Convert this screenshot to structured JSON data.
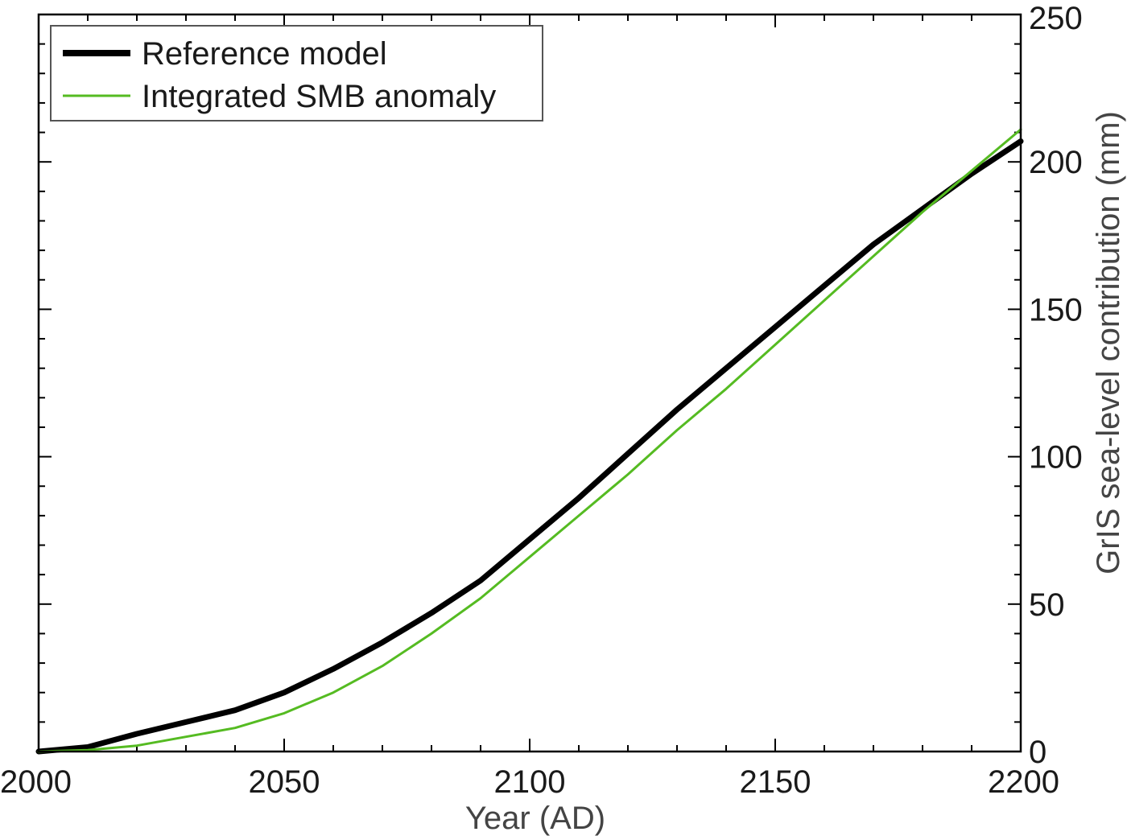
{
  "chart_data": {
    "type": "line",
    "title": "",
    "xlabel": "Year (AD)",
    "ylabel": "GrIS sea-level contribution (mm)",
    "xlim": [
      2000,
      2200
    ],
    "ylim": [
      0,
      250
    ],
    "x_ticks": [
      2000,
      2050,
      2100,
      2150,
      2200
    ],
    "x_tick_labels": [
      "2000",
      "2050",
      "2100",
      "2150",
      "2200"
    ],
    "y_ticks": [
      0,
      50,
      100,
      150,
      200,
      250
    ],
    "y_tick_labels": [
      "0",
      "50",
      "100",
      "150",
      "200",
      "250"
    ],
    "y_axis_side": "right",
    "grid": false,
    "legend_position": "top-left",
    "series": [
      {
        "name": "Reference model",
        "color": "#000000",
        "x": [
          2000,
          2010,
          2020,
          2030,
          2040,
          2050,
          2060,
          2070,
          2080,
          2090,
          2100,
          2110,
          2120,
          2130,
          2140,
          2150,
          2160,
          2170,
          2180,
          2190,
          2200
        ],
        "y": [
          0,
          1.5,
          6,
          10,
          14,
          20,
          28,
          37,
          47,
          58,
          72,
          86,
          101,
          116,
          130,
          144,
          158,
          172,
          184,
          196,
          207
        ]
      },
      {
        "name": "Integrated SMB anomaly",
        "color": "#55bb22",
        "x": [
          2000,
          2010,
          2020,
          2030,
          2040,
          2050,
          2060,
          2070,
          2080,
          2090,
          2100,
          2110,
          2120,
          2130,
          2140,
          2150,
          2160,
          2170,
          2180,
          2190,
          2200
        ],
        "y": [
          0,
          0.5,
          2,
          5,
          8,
          13,
          20,
          29,
          40,
          52,
          66,
          80,
          94,
          109,
          123,
          138,
          153,
          168,
          183,
          197,
          211
        ]
      }
    ]
  }
}
